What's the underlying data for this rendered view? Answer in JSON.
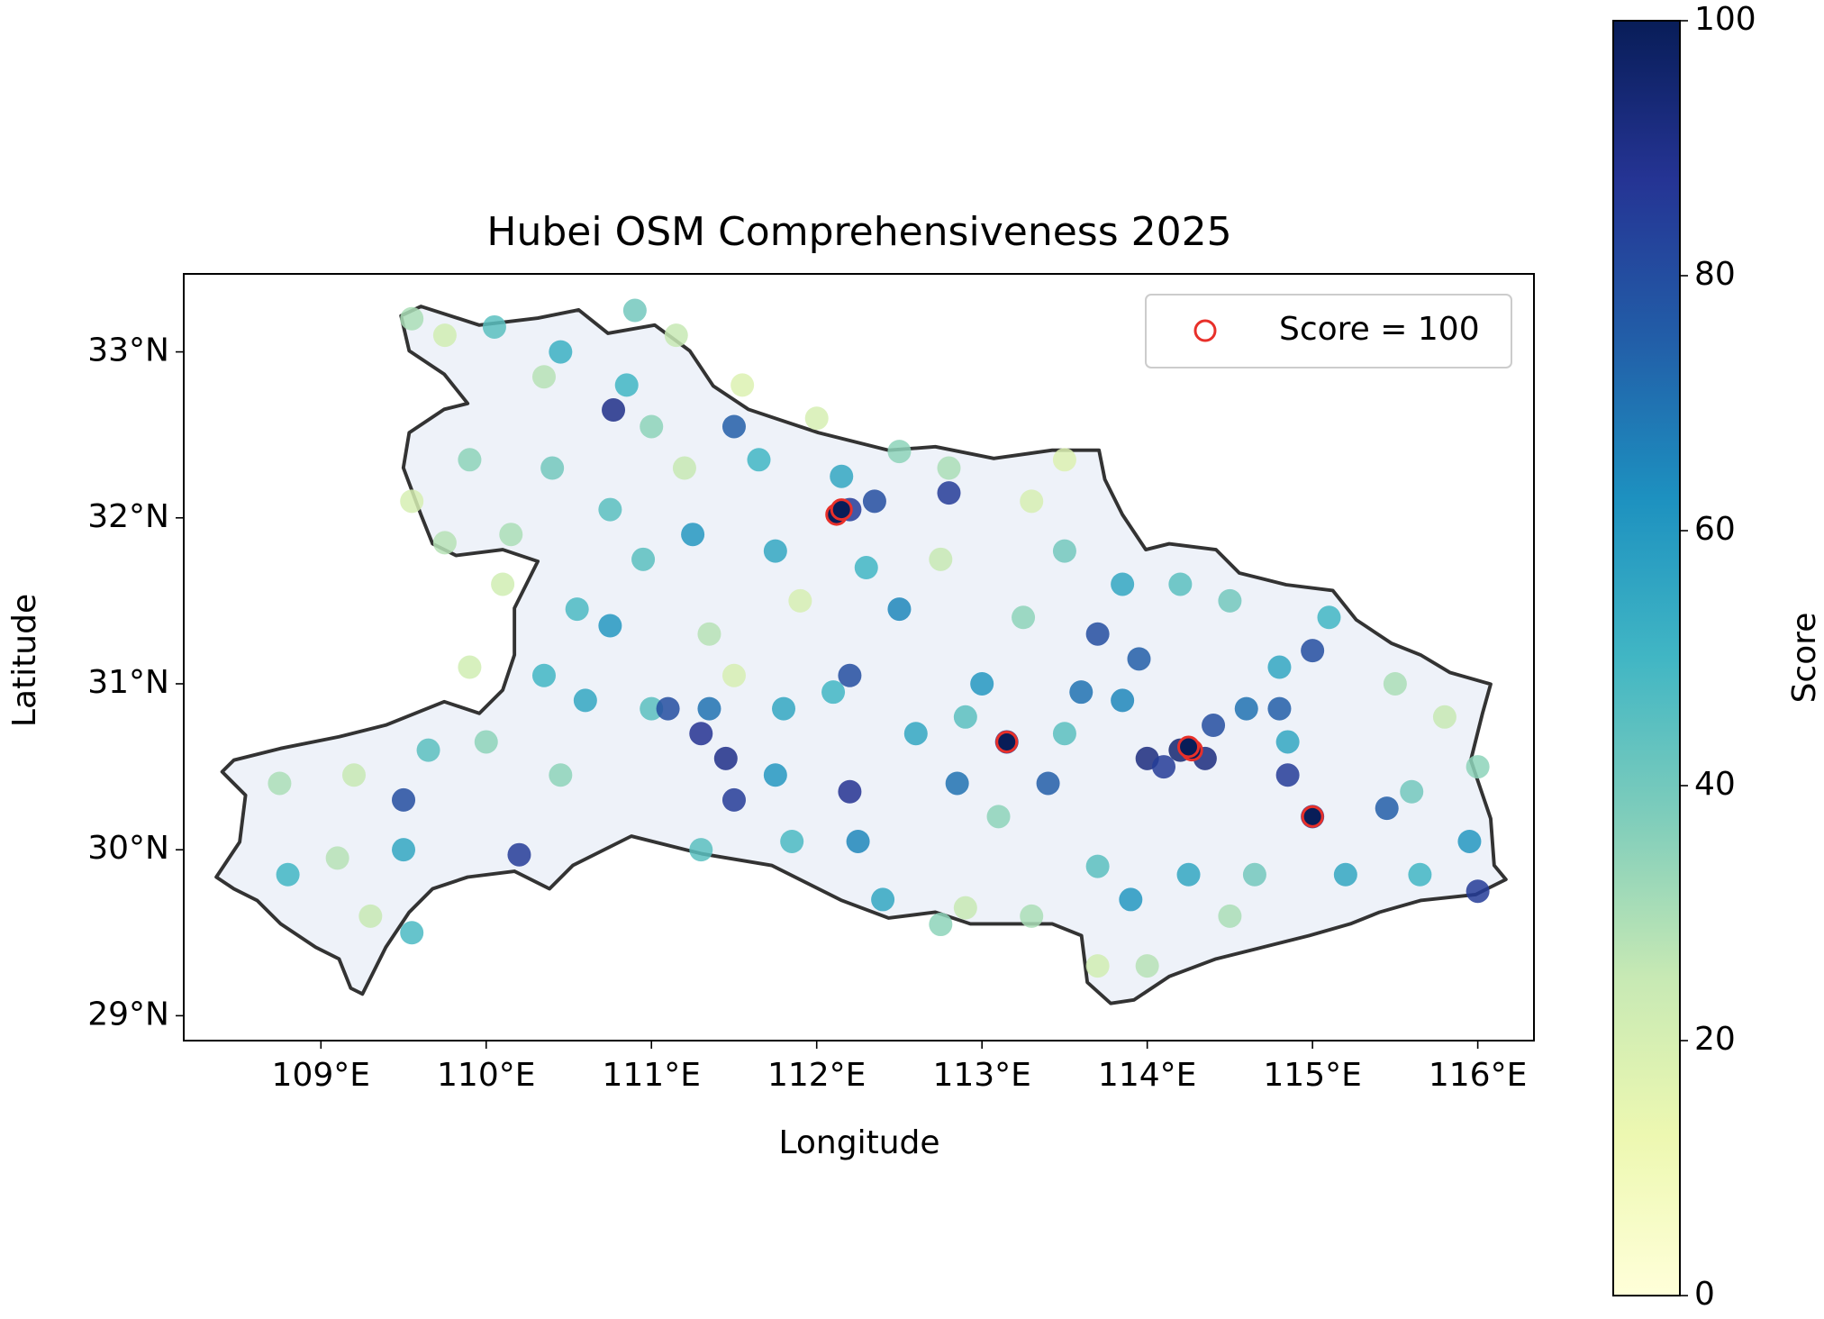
{
  "chart_data": {
    "type": "scatter",
    "title": "Hubei OSM Comprehensiveness 2025",
    "xlabel": "Longitude",
    "ylabel": "Latitude",
    "xlim": [
      108.17,
      116.34
    ],
    "ylim": [
      28.85,
      33.47
    ],
    "xticks": [
      {
        "value": 109,
        "label": "109°E"
      },
      {
        "value": 110,
        "label": "110°E"
      },
      {
        "value": 111,
        "label": "111°E"
      },
      {
        "value": 112,
        "label": "112°E"
      },
      {
        "value": 113,
        "label": "113°E"
      },
      {
        "value": 114,
        "label": "114°E"
      },
      {
        "value": 115,
        "label": "115°E"
      },
      {
        "value": 116,
        "label": "116°E"
      }
    ],
    "yticks": [
      {
        "value": 29,
        "label": "29°N"
      },
      {
        "value": 30,
        "label": "30°N"
      },
      {
        "value": 31,
        "label": "31°N"
      },
      {
        "value": 32,
        "label": "32°N"
      },
      {
        "value": 33,
        "label": "33°N"
      }
    ],
    "series": [
      {
        "x": [
          109.55,
          109.75,
          110.05,
          110.45,
          110.9,
          111.15,
          110.35,
          110.85,
          110.77,
          111.0,
          111.5,
          111.55,
          112.0,
          112.5,
          112.8,
          112.15,
          112.2,
          112.35,
          111.65,
          111.2,
          110.75,
          110.4,
          109.9,
          109.55,
          109.75,
          110.1,
          110.55,
          110.95,
          111.25,
          111.75,
          112.3,
          112.75,
          112.8,
          113.3,
          113.5,
          113.25,
          112.5,
          111.9,
          111.35,
          110.75,
          110.35,
          109.9,
          110.0,
          109.65,
          109.5,
          109.2,
          108.75,
          108.8,
          109.1,
          109.3,
          109.55,
          109.5,
          110.2,
          110.45,
          110.6,
          111.0,
          111.1,
          111.3,
          111.45,
          111.5,
          111.35,
          111.8,
          111.75,
          112.1,
          112.2,
          112.2,
          112.25,
          111.85,
          111.3,
          112.6,
          112.9,
          113.15,
          113.0,
          112.85,
          113.4,
          113.6,
          113.7,
          113.5,
          113.85,
          114.0,
          114.2,
          114.35,
          114.1,
          114.4,
          114.6,
          114.8,
          115.0,
          114.8,
          114.2,
          113.85,
          114.5,
          115.1,
          115.5,
          115.8,
          116.0,
          115.95,
          116.0,
          115.65,
          115.45,
          115.2,
          115.0,
          114.85,
          114.85,
          114.65,
          114.25,
          113.9,
          113.7,
          113.3,
          112.9,
          113.1,
          114.5,
          114.0,
          113.7,
          115.6,
          113.5,
          112.4,
          112.75,
          110.15,
          111.5,
          113.95
        ],
        "y": [
          33.2,
          33.1,
          33.15,
          33.0,
          33.25,
          33.1,
          32.85,
          32.8,
          32.65,
          32.55,
          32.55,
          32.8,
          32.6,
          32.4,
          32.3,
          32.25,
          32.05,
          32.1,
          32.35,
          32.3,
          32.05,
          32.3,
          32.35,
          32.1,
          31.85,
          31.6,
          31.45,
          31.75,
          31.9,
          31.8,
          31.7,
          31.75,
          32.15,
          32.1,
          31.8,
          31.4,
          31.45,
          31.5,
          31.3,
          31.35,
          31.05,
          31.1,
          30.65,
          30.6,
          30.3,
          30.45,
          30.4,
          29.85,
          29.95,
          29.6,
          29.5,
          30.0,
          29.97,
          30.45,
          30.9,
          30.85,
          30.85,
          30.7,
          30.55,
          30.3,
          30.85,
          30.85,
          30.45,
          30.95,
          31.05,
          30.35,
          30.05,
          30.05,
          30.0,
          30.7,
          30.8,
          30.65,
          31.0,
          30.4,
          30.4,
          30.95,
          31.3,
          30.7,
          30.9,
          30.55,
          30.6,
          30.55,
          30.5,
          30.75,
          30.85,
          30.85,
          31.2,
          31.1,
          31.6,
          31.6,
          31.5,
          31.4,
          31.0,
          30.8,
          30.5,
          30.05,
          29.75,
          29.85,
          30.25,
          29.85,
          30.2,
          30.45,
          30.65,
          29.85,
          29.85,
          29.7,
          29.9,
          29.6,
          29.65,
          30.2,
          29.6,
          29.3,
          29.3,
          30.35,
          32.35,
          29.7,
          29.55,
          31.9,
          31.05,
          31.15
        ],
        "values": [
          30,
          22,
          45,
          52,
          40,
          25,
          28,
          50,
          90,
          35,
          75,
          18,
          20,
          35,
          30,
          55,
          85,
          80,
          50,
          25,
          45,
          40,
          35,
          20,
          28,
          22,
          48,
          45,
          60,
          55,
          50,
          25,
          85,
          20,
          40,
          35,
          65,
          20,
          28,
          60,
          50,
          22,
          35,
          45,
          80,
          25,
          30,
          50,
          28,
          25,
          48,
          55,
          85,
          35,
          55,
          45,
          80,
          88,
          90,
          85,
          70,
          55,
          60,
          50,
          80,
          88,
          65,
          48,
          45,
          55,
          45,
          90,
          60,
          70,
          75,
          70,
          80,
          45,
          65,
          92,
          95,
          92,
          85,
          80,
          70,
          75,
          80,
          55,
          45,
          55,
          40,
          50,
          30,
          25,
          35,
          60,
          85,
          50,
          75,
          55,
          90,
          85,
          55,
          40,
          55,
          60,
          45,
          30,
          25,
          35,
          30,
          28,
          22,
          40,
          18,
          55,
          35,
          30,
          20,
          75
        ]
      },
      {
        "name": "Score = 100",
        "color": "#e8302a",
        "x": [
          112.12,
          112.15,
          113.15,
          114.27,
          114.25,
          115.0
        ],
        "y": [
          32.02,
          32.05,
          30.65,
          30.6,
          30.62,
          30.2
        ],
        "values": [
          100,
          100,
          100,
          100,
          100,
          100
        ]
      }
    ],
    "colorbar": {
      "label": "Score",
      "lim": [
        0,
        100
      ],
      "ticks": [
        0,
        20,
        40,
        60,
        80,
        100
      ],
      "colormap": "YlGnBu"
    },
    "legend": "upper right"
  }
}
